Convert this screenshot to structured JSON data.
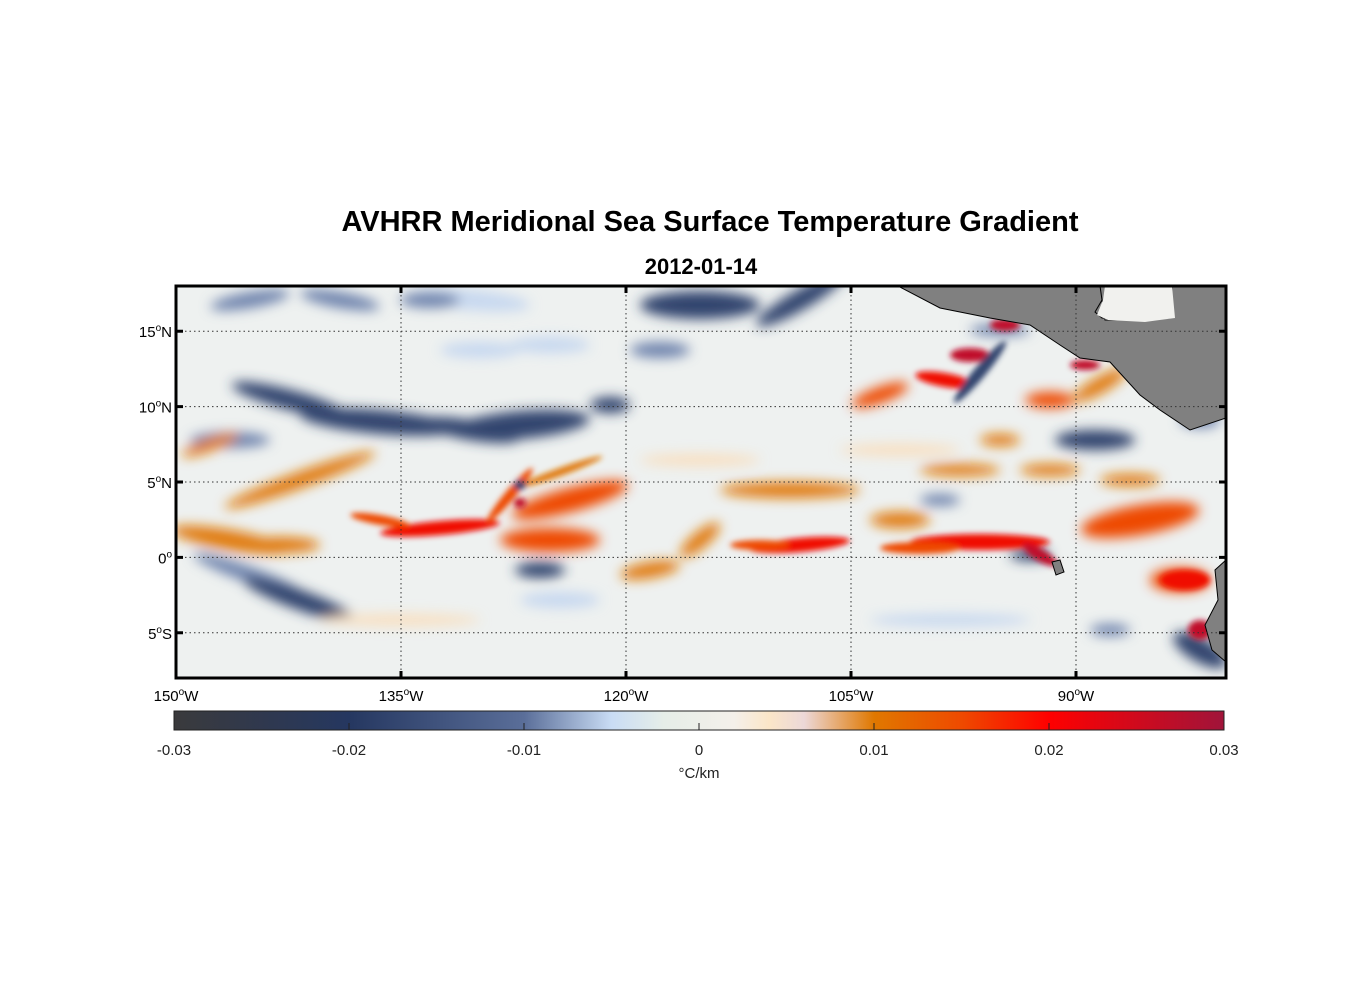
{
  "title": "AVHRR Meridional Sea Surface Temperature Gradient",
  "subtitle": "2012-01-14",
  "map": {
    "lon_range": [
      -150,
      -80
    ],
    "lat_range": [
      -8,
      18
    ],
    "lat_ticks": [
      {
        "value": 15,
        "label": "15",
        "hemi": "N"
      },
      {
        "value": 10,
        "label": "10",
        "hemi": "N"
      },
      {
        "value": 5,
        "label": "5",
        "hemi": "N"
      },
      {
        "value": 0,
        "label": "0",
        "hemi": ""
      },
      {
        "value": -5,
        "label": "5",
        "hemi": "S"
      }
    ],
    "lon_ticks": [
      {
        "value": -150,
        "label": "150",
        "hemi": "W"
      },
      {
        "value": -135,
        "label": "135",
        "hemi": "W"
      },
      {
        "value": -120,
        "label": "120",
        "hemi": "W"
      },
      {
        "value": -105,
        "label": "105",
        "hemi": "W"
      },
      {
        "value": -90,
        "label": "90",
        "hemi": "W"
      }
    ],
    "land_color": "#808080"
  },
  "colorbar": {
    "range": [
      -0.03,
      0.03
    ],
    "ticks": [
      "-0.03",
      "-0.02",
      "-0.01",
      "0",
      "0.01",
      "0.02",
      "0.03"
    ],
    "label": "°C/km",
    "stops": [
      {
        "v": -0.03,
        "c": "#3a3a3c"
      },
      {
        "v": -0.02,
        "c": "#253760"
      },
      {
        "v": -0.01,
        "c": "#5a6e99"
      },
      {
        "v": -0.005,
        "c": "#c9dcf4"
      },
      {
        "v": -0.002,
        "c": "#e6eee8"
      },
      {
        "v": 0.002,
        "c": "#f4f0ea"
      },
      {
        "v": 0.004,
        "c": "#fbe6c8"
      },
      {
        "v": 0.006,
        "c": "#ecd8d8"
      },
      {
        "v": 0.01,
        "c": "#e07800"
      },
      {
        "v": 0.015,
        "c": "#ee4a00"
      },
      {
        "v": 0.02,
        "c": "#ff0000"
      },
      {
        "v": 0.03,
        "c": "#a0143a"
      }
    ]
  }
}
